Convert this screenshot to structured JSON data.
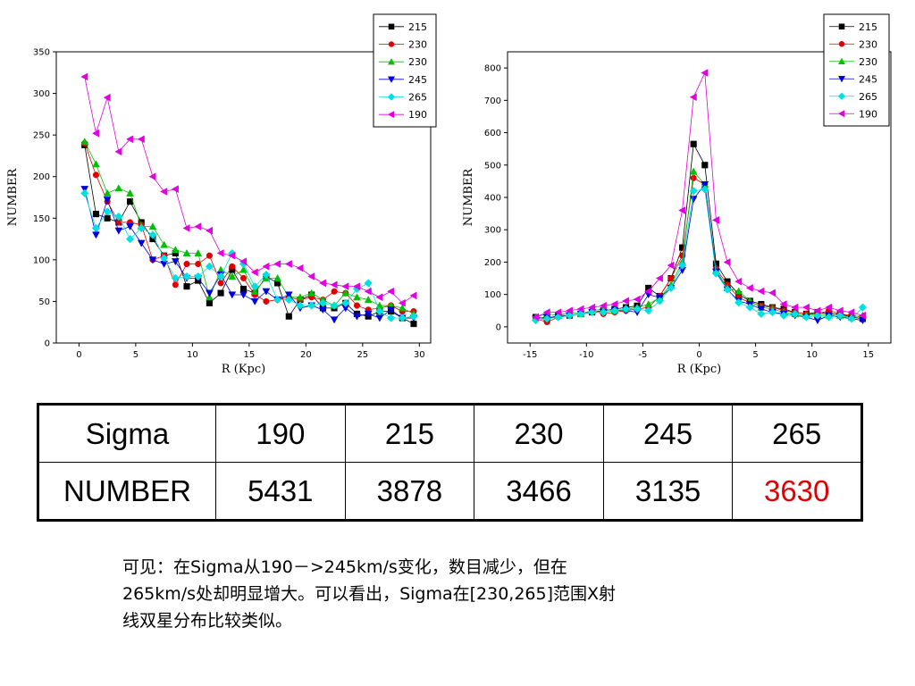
{
  "chart_data": [
    {
      "type": "line",
      "xlabel": "R (Kpc)",
      "ylabel": "NUMBER",
      "xlim": [
        -2,
        31
      ],
      "ylim": [
        0,
        350
      ],
      "xticks": [
        0,
        5,
        10,
        15,
        20,
        25,
        30
      ],
      "yticks": [
        0,
        50,
        100,
        150,
        200,
        250,
        300,
        350
      ],
      "legend_position": "top-right",
      "grid": false,
      "x": [
        0.5,
        1.5,
        2.5,
        3.5,
        4.5,
        5.5,
        6.5,
        7.5,
        8.5,
        9.5,
        10.5,
        11.5,
        12.5,
        13.5,
        14.5,
        15.5,
        16.5,
        17.5,
        18.5,
        19.5,
        20.5,
        21.5,
        22.5,
        23.5,
        24.5,
        25.5,
        26.5,
        27.5,
        28.5,
        29.5
      ],
      "series": [
        {
          "name": "215",
          "color": "#000000",
          "marker": "square",
          "values": [
            238,
            155,
            150,
            145,
            170,
            145,
            125,
            105,
            108,
            68,
            75,
            48,
            60,
            88,
            65,
            60,
            80,
            72,
            32,
            52,
            58,
            42,
            42,
            48,
            35,
            32,
            38,
            38,
            30,
            23
          ]
        },
        {
          "name": "230",
          "color": "#e00000",
          "marker": "circle",
          "values": [
            240,
            202,
            170,
            145,
            145,
            142,
            100,
            105,
            70,
            95,
            95,
            105,
            72,
            92,
            78,
            58,
            50,
            52,
            55,
            52,
            55,
            52,
            62,
            60,
            45,
            40,
            42,
            45,
            38,
            38
          ]
        },
        {
          "name": "230",
          "color": "#00c000",
          "marker": "triangle-up",
          "values": [
            242,
            215,
            180,
            186,
            180,
            140,
            140,
            118,
            112,
            108,
            108,
            55,
            88,
            80,
            88,
            62,
            78,
            78,
            55,
            55,
            60,
            52,
            45,
            60,
            55,
            52,
            45,
            45,
            42,
            35
          ]
        },
        {
          "name": "245",
          "color": "#0000e0",
          "marker": "triangle-down",
          "values": [
            185,
            130,
            172,
            135,
            140,
            120,
            100,
            95,
            98,
            78,
            78,
            60,
            82,
            58,
            58,
            50,
            62,
            52,
            58,
            42,
            45,
            40,
            28,
            42,
            32,
            35,
            30,
            40,
            30,
            30
          ]
        },
        {
          "name": "265",
          "color": "#00e0e0",
          "marker": "diamond",
          "values": [
            180,
            138,
            158,
            152,
            125,
            138,
            130,
            102,
            78,
            80,
            80,
            92,
            80,
            108,
            95,
            68,
            82,
            52,
            52,
            45,
            45,
            48,
            45,
            48,
            65,
            72,
            38,
            30,
            30,
            32
          ]
        },
        {
          "name": "190",
          "color": "#e000e0",
          "marker": "triangle-left",
          "values": [
            320,
            252,
            295,
            230,
            245,
            245,
            200,
            182,
            185,
            138,
            140,
            135,
            108,
            105,
            98,
            85,
            92,
            95,
            95,
            90,
            80,
            72,
            70,
            68,
            68,
            62,
            55,
            62,
            48,
            57
          ]
        }
      ]
    },
    {
      "type": "line",
      "xlabel": "R (Kpc)",
      "ylabel": "NUMBER",
      "xlim": [
        -17,
        17
      ],
      "ylim": [
        -50,
        850
      ],
      "xticks": [
        -15,
        -10,
        -5,
        0,
        5,
        10,
        15
      ],
      "yticks": [
        0,
        100,
        200,
        300,
        400,
        500,
        600,
        700,
        800
      ],
      "legend_position": "top-right",
      "grid": false,
      "x": [
        -14.5,
        -13.5,
        -12.5,
        -11.5,
        -10.5,
        -9.5,
        -8.5,
        -7.5,
        -6.5,
        -5.5,
        -4.5,
        -3.5,
        -2.5,
        -1.5,
        -0.5,
        0.5,
        1.5,
        2.5,
        3.5,
        4.5,
        5.5,
        6.5,
        7.5,
        8.5,
        9.5,
        10.5,
        11.5,
        12.5,
        13.5,
        14.5
      ],
      "series": [
        {
          "name": "215",
          "color": "#000000",
          "marker": "square",
          "values": [
            30,
            25,
            35,
            35,
            40,
            45,
            50,
            55,
            60,
            65,
            120,
            95,
            150,
            245,
            565,
            500,
            195,
            140,
            100,
            80,
            70,
            60,
            55,
            45,
            40,
            45,
            40,
            40,
            30,
            25
          ]
        },
        {
          "name": "230",
          "color": "#e00000",
          "marker": "circle",
          "values": [
            25,
            15,
            30,
            35,
            40,
            50,
            40,
            45,
            50,
            55,
            60,
            95,
            150,
            220,
            460,
            440,
            180,
            130,
            90,
            75,
            65,
            60,
            50,
            45,
            40,
            40,
            50,
            40,
            35,
            30
          ]
        },
        {
          "name": "230",
          "color": "#00c000",
          "marker": "triangle-up",
          "values": [
            30,
            40,
            35,
            45,
            40,
            50,
            55,
            50,
            55,
            60,
            70,
            90,
            130,
            200,
            480,
            440,
            175,
            120,
            110,
            80,
            60,
            55,
            45,
            40,
            35,
            40,
            35,
            35,
            30,
            35
          ]
        },
        {
          "name": "245",
          "color": "#0000e0",
          "marker": "triangle-down",
          "values": [
            25,
            30,
            30,
            35,
            40,
            45,
            45,
            50,
            50,
            45,
            100,
            90,
            120,
            175,
            395,
            440,
            170,
            115,
            80,
            70,
            55,
            45,
            40,
            35,
            30,
            20,
            35,
            30,
            25,
            20
          ]
        },
        {
          "name": "265",
          "color": "#00e0e0",
          "marker": "diamond",
          "values": [
            20,
            25,
            30,
            35,
            40,
            45,
            45,
            50,
            55,
            55,
            50,
            80,
            120,
            190,
            420,
            425,
            165,
            115,
            75,
            60,
            40,
            45,
            35,
            40,
            30,
            35,
            30,
            35,
            25,
            60
          ]
        },
        {
          "name": "190",
          "color": "#e000e0",
          "marker": "triangle-left",
          "values": [
            30,
            45,
            45,
            50,
            55,
            60,
            65,
            70,
            80,
            85,
            110,
            150,
            190,
            360,
            710,
            785,
            330,
            200,
            140,
            120,
            110,
            105,
            70,
            60,
            60,
            50,
            60,
            50,
            45,
            35
          ]
        }
      ]
    }
  ],
  "table": {
    "header_label": "Sigma",
    "row_label": "NUMBER",
    "sigmas": [
      "190",
      "215",
      "230",
      "245",
      "265"
    ],
    "numbers": [
      "5431",
      "3878",
      "3466",
      "3135",
      "3630"
    ],
    "highlight_color": "#e00000"
  },
  "caption": {
    "line1": "可见：在Sigma从190－>245km/s变化，数目减少，但在",
    "line2": "265km/s处却明显增大。可以看出，Sigma在[230,265]范围X射",
    "line3": "线双星分布比较类似。"
  }
}
